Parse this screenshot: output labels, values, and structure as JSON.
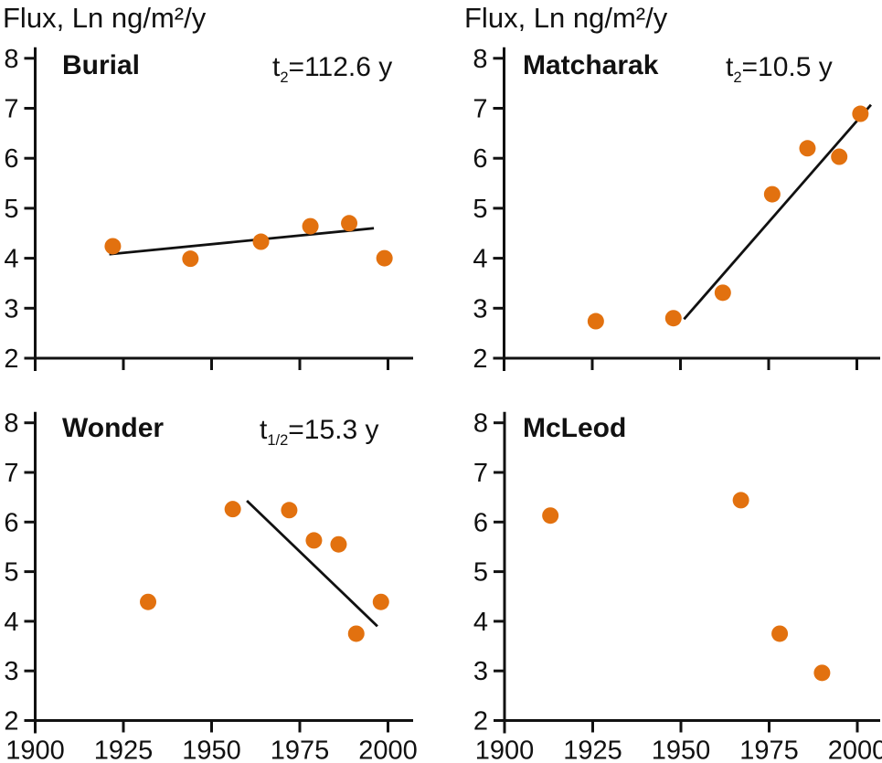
{
  "figure": {
    "ylabel": "Flux, Ln ng/m²/y",
    "x_ticks": [
      1900,
      1925,
      1950,
      1975,
      2000
    ],
    "y_ticks": [
      2,
      3,
      4,
      5,
      6,
      7,
      8
    ],
    "xlim": [
      1900,
      2007
    ],
    "ylim": [
      2,
      8
    ],
    "grid": false,
    "legend": "none",
    "colors": {
      "marker": "#E2710F",
      "axis": "#111111",
      "trend": "#111111"
    }
  },
  "chart_data": [
    {
      "type": "scatter",
      "key": "burial",
      "title": "Burial",
      "annotation": {
        "pre": "t",
        "sub": "2",
        "post": "=112.6 y"
      },
      "points": {
        "x": [
          1922,
          1944,
          1964,
          1978,
          1989,
          1999
        ],
        "y": [
          4.24,
          3.99,
          4.33,
          4.64,
          4.7,
          4.0
        ]
      },
      "trend": {
        "x": [
          1921,
          1996
        ],
        "y": [
          4.08,
          4.6
        ]
      }
    },
    {
      "type": "scatter",
      "key": "matcharak",
      "title": "Matcharak",
      "annotation": {
        "pre": "t",
        "sub": "2",
        "post": "=10.5 y"
      },
      "points": {
        "x": [
          1926,
          1948,
          1962,
          1976,
          1986,
          1995,
          2001
        ],
        "y": [
          2.74,
          2.8,
          3.31,
          5.28,
          6.2,
          6.03,
          6.89
        ]
      },
      "trend": {
        "x": [
          1951,
          2004
        ],
        "y": [
          2.78,
          7.07
        ]
      }
    },
    {
      "type": "scatter",
      "key": "wonder",
      "title": "Wonder",
      "annotation": {
        "pre": "t",
        "sub": "1/2",
        "post": "=15.3 y"
      },
      "points": {
        "x": [
          1932,
          1956,
          1972,
          1979,
          1986,
          1991,
          1998
        ],
        "y": [
          4.39,
          6.26,
          6.24,
          5.63,
          5.55,
          3.75,
          4.39
        ]
      },
      "trend": {
        "x": [
          1960,
          1997
        ],
        "y": [
          6.43,
          3.9
        ]
      }
    },
    {
      "type": "scatter",
      "key": "mcleod",
      "title": "McLeod",
      "points": {
        "x": [
          1913,
          1967,
          1978,
          1990
        ],
        "y": [
          6.13,
          6.44,
          3.75,
          2.96
        ]
      }
    }
  ]
}
